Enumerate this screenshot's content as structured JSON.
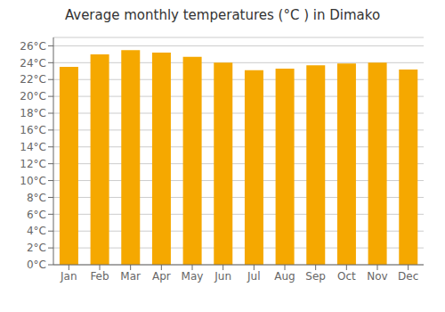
{
  "chart_data": {
    "type": "bar",
    "title": "Average monthly temperatures (°C ) in Dimako",
    "categories": [
      "Jan",
      "Feb",
      "Mar",
      "Apr",
      "May",
      "Jun",
      "Jul",
      "Aug",
      "Sep",
      "Oct",
      "Nov",
      "Dec"
    ],
    "values": [
      23.5,
      25.0,
      25.5,
      25.2,
      24.7,
      24.0,
      23.1,
      23.3,
      23.7,
      23.9,
      24.0,
      23.2
    ],
    "color": "#F5A800",
    "ylim": [
      0,
      27
    ],
    "yticks": [
      {
        "value": 0,
        "label": "0°C"
      },
      {
        "value": 2,
        "label": "2°C"
      },
      {
        "value": 4,
        "label": "4°C"
      },
      {
        "value": 6,
        "label": "6°C"
      },
      {
        "value": 8,
        "label": "8°C"
      },
      {
        "value": 10,
        "label": "10°C"
      },
      {
        "value": 12,
        "label": "12°C"
      },
      {
        "value": 14,
        "label": "14°C"
      },
      {
        "value": 16,
        "label": "16°C"
      },
      {
        "value": 18,
        "label": "18°C"
      },
      {
        "value": 20,
        "label": "20°C"
      },
      {
        "value": 22,
        "label": "22°C"
      },
      {
        "value": 24,
        "label": "24°C"
      },
      {
        "value": 26,
        "label": "26°C"
      }
    ],
    "grid": true
  }
}
